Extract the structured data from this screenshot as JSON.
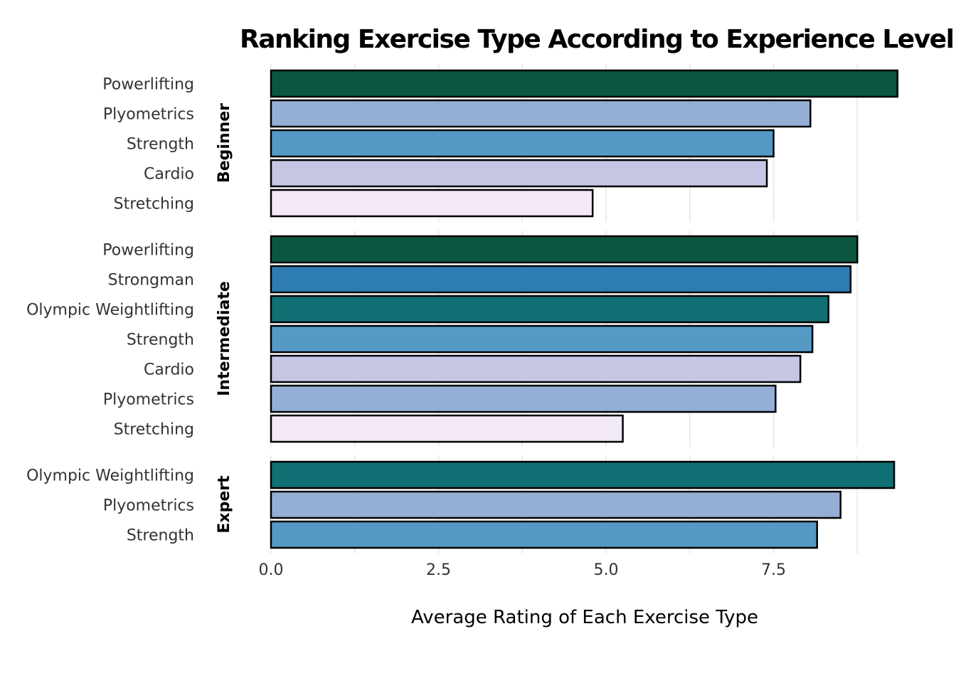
{
  "chart_data": {
    "type": "bar",
    "orientation": "horizontal",
    "title": "Ranking Exercise Type According to Experience Level of In",
    "xlabel": "Average Rating of Each Exercise Type",
    "ylabel": "",
    "xlim": [
      0,
      9.4
    ],
    "xticks": [
      "0.0",
      "2.5",
      "5.0",
      "7.5"
    ],
    "grid": true,
    "legend": "none",
    "panels": [
      {
        "group": "Beginner",
        "bars": [
          {
            "category": "Powerlifting",
            "value": 9.35,
            "color": "#0b5641"
          },
          {
            "category": "Plyometrics",
            "value": 8.05,
            "color": "#95aed5"
          },
          {
            "category": "Strength",
            "value": 7.5,
            "color": "#5599c5"
          },
          {
            "category": "Cardio",
            "value": 7.4,
            "color": "#c5c6e3"
          },
          {
            "category": "Stretching",
            "value": 4.8,
            "color": "#f3e8f5"
          }
        ]
      },
      {
        "group": "Intermediate",
        "bars": [
          {
            "category": "Powerlifting",
            "value": 8.75,
            "color": "#0b5641"
          },
          {
            "category": "Strongman",
            "value": 8.65,
            "color": "#2d7cb2"
          },
          {
            "category": "Olympic Weightlifting",
            "value": 8.32,
            "color": "#106f73"
          },
          {
            "category": "Strength",
            "value": 8.08,
            "color": "#5599c5"
          },
          {
            "category": "Cardio",
            "value": 7.9,
            "color": "#c5c6e3"
          },
          {
            "category": "Plyometrics",
            "value": 7.53,
            "color": "#95aed5"
          },
          {
            "category": "Stretching",
            "value": 5.25,
            "color": "#f3e8f5"
          }
        ]
      },
      {
        "group": "Expert",
        "bars": [
          {
            "category": "Olympic Weightlifting",
            "value": 9.3,
            "color": "#106f73"
          },
          {
            "category": "Plyometrics",
            "value": 8.5,
            "color": "#95aed5"
          },
          {
            "category": "Strength",
            "value": 8.15,
            "color": "#5599c5"
          }
        ]
      }
    ]
  }
}
